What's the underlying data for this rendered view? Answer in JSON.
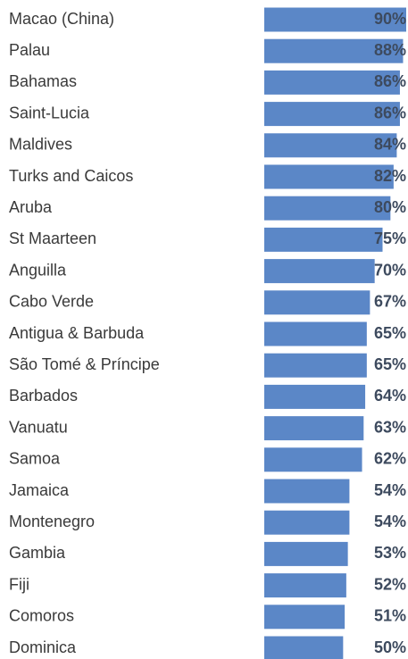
{
  "chart_data": {
    "type": "bar",
    "orientation": "horizontal",
    "categories": [
      "Macao (China)",
      "Palau",
      "Bahamas",
      "Saint-Lucia",
      "Maldives",
      "Turks and Caicos",
      "Aruba",
      "St Maarteen",
      "Anguilla",
      "Cabo Verde",
      "Antigua & Barbuda",
      "São Tomé & Príncipe",
      "Barbados",
      "Vanuatu",
      "Samoa",
      "Jamaica",
      "Montenegro",
      "Gambia",
      "Fiji",
      "Comoros",
      "Dominica"
    ],
    "values": [
      90,
      88,
      86,
      86,
      84,
      82,
      80,
      75,
      70,
      67,
      65,
      65,
      64,
      63,
      62,
      54,
      54,
      53,
      52,
      51,
      50
    ],
    "value_labels": [
      "90%",
      "88%",
      "86%",
      "86%",
      "84%",
      "82%",
      "80%",
      "75%",
      "70%",
      "67%",
      "65%",
      "65%",
      "64%",
      "63%",
      "62%",
      "54%",
      "54%",
      "53%",
      "52%",
      "51%",
      "50%"
    ],
    "color": "#5b87c7",
    "xlim": [
      0,
      90
    ]
  }
}
